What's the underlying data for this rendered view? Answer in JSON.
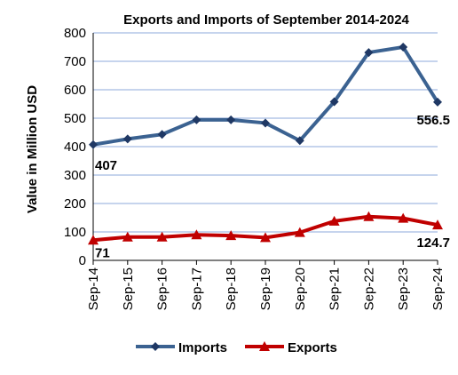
{
  "chart_data": {
    "type": "line",
    "title": "Exports and Imports of September 2014-2024",
    "ylabel": "Value in  Million  USD",
    "xlabel": "",
    "categories": [
      "Sep-14",
      "Sep-15",
      "Sep-16",
      "Sep-17",
      "Sep-18",
      "Sep-19",
      "Sep-20",
      "Sep-21",
      "Sep-22",
      "Sep-23",
      "Sep-24"
    ],
    "ylim": [
      0,
      800
    ],
    "yticks": [
      0,
      100,
      200,
      300,
      400,
      500,
      600,
      700,
      800
    ],
    "grid": true,
    "legend": "bottom",
    "series": [
      {
        "name": "Imports",
        "color": "#3B6291",
        "marker": "diamond",
        "values": [
          407,
          427,
          443,
          494,
          494,
          483,
          421,
          558,
          731,
          750,
          556.5
        ]
      },
      {
        "name": "Exports",
        "color": "#C00000",
        "marker": "triangle",
        "values": [
          71,
          82,
          82,
          90,
          87,
          80,
          98,
          138,
          154,
          148,
          124.7
        ]
      }
    ],
    "annotations": [
      {
        "series": 0,
        "index": 0,
        "text": "407"
      },
      {
        "series": 0,
        "index": 10,
        "text": "556.5"
      },
      {
        "series": 1,
        "index": 0,
        "text": "71"
      },
      {
        "series": 1,
        "index": 10,
        "text": "124.7"
      }
    ]
  }
}
